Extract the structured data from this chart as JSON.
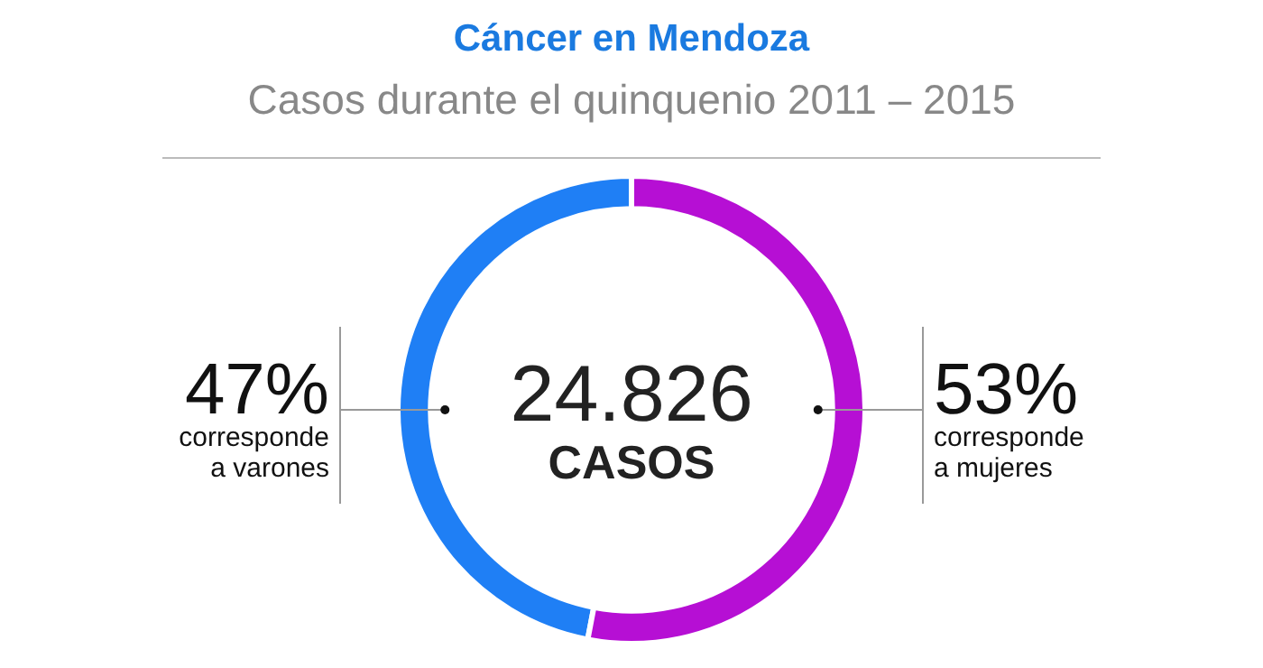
{
  "chart_data": {
    "type": "donut",
    "title": "Cáncer en Mendoza",
    "subtitle": "Casos durante el quinquenio 2011 – 2015",
    "categories": [
      "corresponde a varones",
      "corresponde a mujeres"
    ],
    "values": [
      47,
      53
    ],
    "colors": [
      "#1f7ff5",
      "#b60fd4"
    ],
    "value_labels": [
      "47%",
      "53%"
    ],
    "annotations": [
      "24.826",
      "CASOS"
    ],
    "legend": false
  }
}
